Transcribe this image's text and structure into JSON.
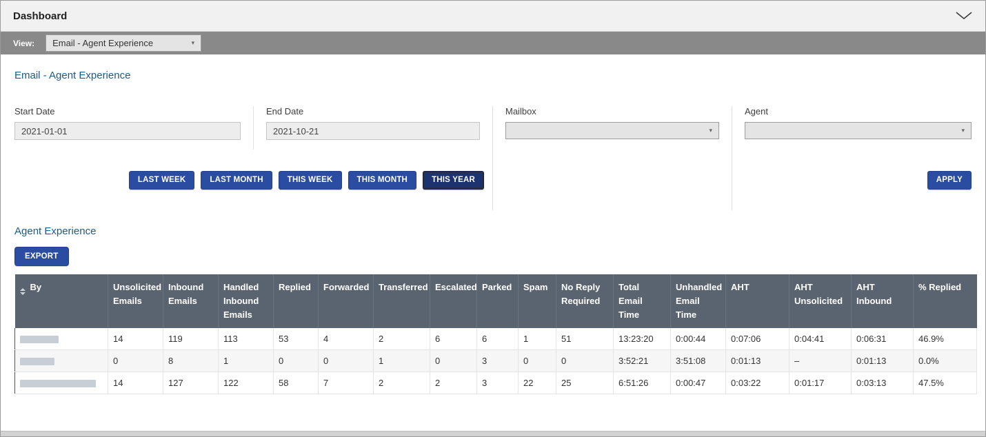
{
  "header": {
    "title": "Dashboard"
  },
  "view_bar": {
    "label": "View:",
    "selected_view": "Email - Agent Experience"
  },
  "icons": {
    "caret_down": "▾"
  },
  "filters": {
    "section_title": "Email - Agent Experience",
    "start_date": {
      "label": "Start Date",
      "value": "2021-01-01"
    },
    "end_date": {
      "label": "End Date",
      "value": "2021-10-21"
    },
    "mailbox": {
      "label": "Mailbox",
      "value": ""
    },
    "agent": {
      "label": "Agent",
      "value": ""
    },
    "quick_ranges": [
      "LAST WEEK",
      "LAST MONTH",
      "THIS WEEK",
      "THIS MONTH",
      "THIS YEAR"
    ],
    "active_quick_range": "THIS YEAR",
    "apply_label": "APPLY"
  },
  "results": {
    "section_title": "Agent Experience",
    "export_label": "EXPORT"
  },
  "table": {
    "columns": [
      "By",
      "Unsolicited Emails",
      "Inbound Emails",
      "Handled Inbound Emails",
      "Replied",
      "Forwarded",
      "Transferred",
      "Escalated",
      "Parked",
      "Spam",
      "No Reply Required",
      "Total Email Time",
      "Unhandled Email Time",
      "AHT",
      "AHT Unsolicited",
      "AHT Inbound",
      "% Replied"
    ],
    "rows": [
      {
        "by": "",
        "values": [
          "14",
          "119",
          "113",
          "53",
          "4",
          "2",
          "6",
          "6",
          "1",
          "51",
          "13:23:20",
          "0:00:44",
          "0:07:06",
          "0:04:41",
          "0:06:31",
          "46.9%"
        ]
      },
      {
        "by": "",
        "values": [
          "0",
          "8",
          "1",
          "0",
          "0",
          "1",
          "0",
          "3",
          "0",
          "0",
          "3:52:21",
          "3:51:08",
          "0:01:13",
          "–",
          "0:01:13",
          "0.0%"
        ]
      },
      {
        "by": "",
        "values": [
          "14",
          "127",
          "122",
          "58",
          "7",
          "2",
          "2",
          "3",
          "22",
          "25",
          "6:51:26",
          "0:00:47",
          "0:03:22",
          "0:01:17",
          "0:03:13",
          "47.5%"
        ]
      }
    ]
  },
  "colors": {
    "accent_blue": "#2b4da1",
    "active_button_blue": "#1d3370",
    "heading_blue": "#1d5a85",
    "table_header_bg": "#5a6470"
  }
}
